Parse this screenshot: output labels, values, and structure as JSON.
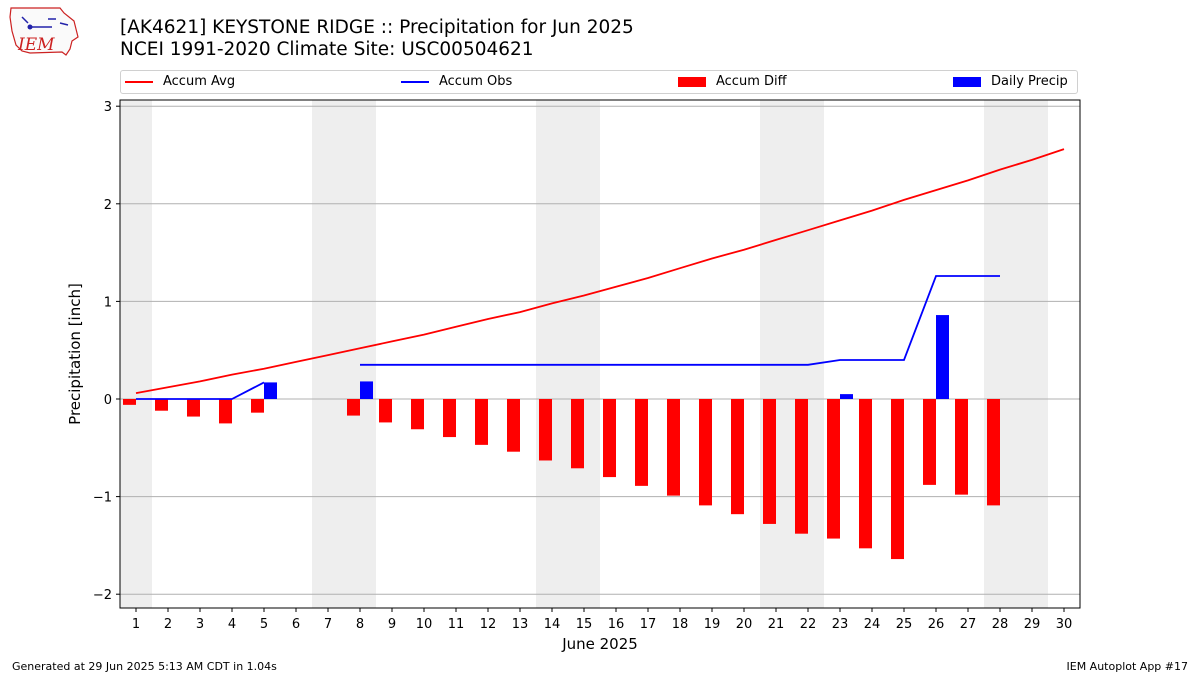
{
  "header": {
    "title_line1": "[AK4621] KEYSTONE RIDGE :: Precipitation for Jun 2025",
    "title_line2": "NCEI 1991-2020 Climate Site: USC00504621",
    "logo_text": "IEM"
  },
  "footer": {
    "left": "Generated at 29 Jun 2025 5:13 AM CDT in 1.04s",
    "right": "IEM Autoplot App #17"
  },
  "legend": {
    "items": [
      {
        "label": "Accum Avg",
        "kind": "line",
        "color": "#ff0000"
      },
      {
        "label": "Accum Obs",
        "kind": "line",
        "color": "#0000ff"
      },
      {
        "label": "Accum Diff",
        "kind": "bar",
        "color": "#ff0000"
      },
      {
        "label": "Daily Precip",
        "kind": "bar",
        "color": "#0000ff"
      }
    ]
  },
  "chart_data": {
    "type": "bar",
    "title": "[AK4621] KEYSTONE RIDGE :: Precipitation for Jun 2025",
    "subtitle": "NCEI 1991-2020 Climate Site: USC00504621",
    "xlabel": "June 2025",
    "ylabel": "Precipitation [inch]",
    "xlim": [
      1,
      30
    ],
    "ylim": [
      -2.15,
      3.05
    ],
    "x_ticks": [
      1,
      2,
      3,
      4,
      5,
      6,
      7,
      8,
      9,
      10,
      11,
      12,
      13,
      14,
      15,
      16,
      17,
      18,
      19,
      20,
      21,
      22,
      23,
      24,
      25,
      26,
      27,
      28,
      29,
      30
    ],
    "y_ticks": [
      -2,
      -1,
      0,
      1,
      2,
      3
    ],
    "y_tick_labels": [
      "−2",
      "−1",
      "0",
      "1",
      "2",
      "3"
    ],
    "grid": "horizontal",
    "legend_position": "top",
    "shaded_weekend_days": [
      [
        0.5,
        1.5
      ],
      [
        6.5,
        8.5
      ],
      [
        13.5,
        15.5
      ],
      [
        20.5,
        22.5
      ],
      [
        27.5,
        29.5
      ]
    ],
    "series": [
      {
        "name": "Accum Avg",
        "kind": "line",
        "color": "#ff0000",
        "x": [
          1,
          2,
          3,
          4,
          5,
          6,
          7,
          8,
          9,
          10,
          11,
          12,
          13,
          14,
          15,
          16,
          17,
          18,
          19,
          20,
          21,
          22,
          23,
          24,
          25,
          26,
          27,
          28,
          29,
          30
        ],
        "values": [
          0.06,
          0.12,
          0.18,
          0.25,
          0.31,
          0.38,
          0.45,
          0.52,
          0.59,
          0.66,
          0.74,
          0.82,
          0.89,
          0.98,
          1.06,
          1.15,
          1.24,
          1.34,
          1.44,
          1.53,
          1.63,
          1.73,
          1.83,
          1.93,
          2.04,
          2.14,
          2.24,
          2.35,
          2.45,
          2.56
        ]
      },
      {
        "name": "Accum Obs",
        "kind": "line",
        "color": "#0000ff",
        "x": [
          1,
          2,
          3,
          4,
          5,
          null,
          8,
          9,
          10,
          11,
          12,
          13,
          14,
          15,
          16,
          17,
          18,
          19,
          20,
          21,
          22,
          23,
          24,
          25,
          26,
          27,
          28
        ],
        "values": [
          0,
          0,
          0,
          0,
          0.17,
          null,
          0.35,
          0.35,
          0.35,
          0.35,
          0.35,
          0.35,
          0.35,
          0.35,
          0.35,
          0.35,
          0.35,
          0.35,
          0.35,
          0.35,
          0.35,
          0.4,
          0.4,
          0.4,
          1.26,
          1.26,
          1.26
        ]
      },
      {
        "name": "Accum Diff",
        "kind": "bar",
        "color": "#ff0000",
        "x": [
          1,
          2,
          3,
          4,
          5,
          8,
          9,
          10,
          11,
          12,
          13,
          14,
          15,
          16,
          17,
          18,
          19,
          20,
          21,
          22,
          23,
          24,
          25,
          26,
          27,
          28
        ],
        "values": [
          -0.06,
          -0.12,
          -0.18,
          -0.25,
          -0.14,
          -0.17,
          -0.24,
          -0.31,
          -0.39,
          -0.47,
          -0.54,
          -0.63,
          -0.71,
          -0.8,
          -0.89,
          -0.99,
          -1.09,
          -1.18,
          -1.28,
          -1.38,
          -1.43,
          -1.53,
          -1.64,
          -0.88,
          -0.98,
          -1.09
        ]
      },
      {
        "name": "Daily Precip",
        "kind": "bar",
        "color": "#0000ff",
        "x": [
          5,
          8,
          23,
          26
        ],
        "values": [
          0.17,
          0.18,
          0.05,
          0.86
        ]
      }
    ]
  }
}
